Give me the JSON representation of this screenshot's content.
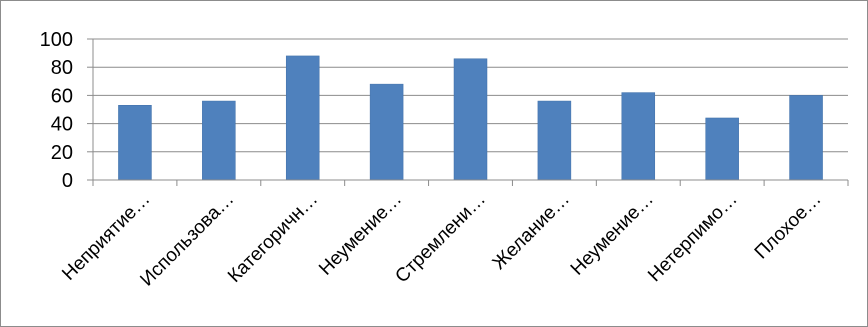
{
  "chart_data": {
    "type": "bar",
    "categories": [
      "Неприятие…",
      "Использова…",
      "Категоричн…",
      "Неумение…",
      "Стремлени…",
      "Желание…",
      "Неумение…",
      "Нетерпимо…",
      "Плохое…"
    ],
    "values": [
      53,
      56,
      88,
      68,
      86,
      56,
      62,
      44,
      60
    ],
    "ylim": [
      0,
      100
    ],
    "yticks": [
      "0",
      "20",
      "40",
      "60",
      "80",
      "100"
    ],
    "title": "",
    "xlabel": "",
    "ylabel": "",
    "grid": true,
    "legend": "none",
    "colors": {
      "bar": "#4f81bd",
      "bar_edge": "#3f6fa8",
      "grid": "#8c8c8c",
      "axis": "#8c8c8c"
    }
  }
}
